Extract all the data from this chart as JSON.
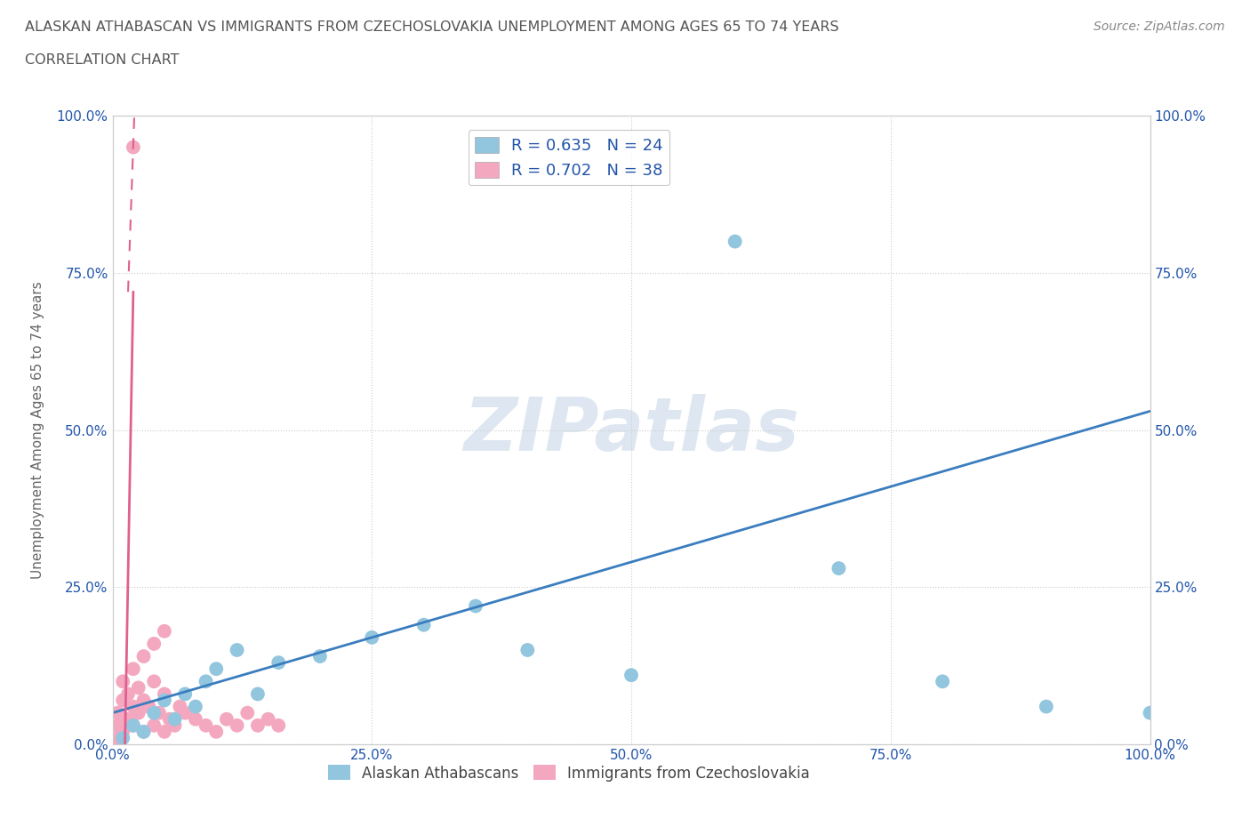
{
  "title_line1": "ALASKAN ATHABASCAN VS IMMIGRANTS FROM CZECHOSLOVAKIA UNEMPLOYMENT AMONG AGES 65 TO 74 YEARS",
  "title_line2": "CORRELATION CHART",
  "source_text": "Source: ZipAtlas.com",
  "ylabel": "Unemployment Among Ages 65 to 74 years",
  "xlim": [
    0,
    100
  ],
  "ylim": [
    0,
    100
  ],
  "xtick_vals": [
    0,
    25,
    50,
    75,
    100
  ],
  "ytick_vals": [
    0,
    25,
    50,
    75,
    100
  ],
  "legend_R1": "R = 0.635",
  "legend_N1": "N = 24",
  "legend_R2": "R = 0.702",
  "legend_N2": "N = 38",
  "color_blue": "#92c5de",
  "color_pink": "#f4a8c0",
  "color_trendline_blue": "#3a7dbf",
  "color_trendline_pink": "#e06090",
  "color_title": "#555555",
  "color_source": "#888888",
  "color_axis_label": "#2255aa",
  "watermark_text": "ZIPatlas",
  "blue_scatter_x": [
    1,
    2,
    3,
    4,
    5,
    6,
    7,
    8,
    9,
    10,
    12,
    14,
    16,
    20,
    25,
    30,
    35,
    40,
    50,
    60,
    70,
    80,
    90,
    100
  ],
  "blue_scatter_y": [
    1,
    3,
    2,
    5,
    7,
    4,
    8,
    6,
    10,
    12,
    15,
    8,
    13,
    14,
    17,
    19,
    22,
    15,
    11,
    80,
    28,
    10,
    6,
    5
  ],
  "pink_scatter_x": [
    0.5,
    0.5,
    0.5,
    1,
    1,
    1,
    1.5,
    1.5,
    2,
    2,
    2,
    2.5,
    2.5,
    3,
    3,
    3,
    3.5,
    4,
    4,
    4,
    4.5,
    5,
    5,
    5,
    5.5,
    6,
    6.5,
    7,
    8,
    9,
    10,
    11,
    12,
    13,
    14,
    15,
    16,
    2
  ],
  "pink_scatter_y": [
    1,
    3,
    5,
    2,
    7,
    10,
    4,
    8,
    3,
    6,
    12,
    5,
    9,
    2,
    7,
    14,
    6,
    3,
    10,
    16,
    5,
    2,
    8,
    18,
    4,
    3,
    6,
    5,
    4,
    3,
    2,
    4,
    3,
    5,
    3,
    4,
    3,
    95
  ],
  "blue_trend_x0": 0,
  "blue_trend_y0": 5,
  "blue_trend_x1": 100,
  "blue_trend_y1": 53,
  "pink_trend_solid_x0": 1.2,
  "pink_trend_solid_y0": 0,
  "pink_trend_solid_x1": 2.0,
  "pink_trend_solid_y1": 72,
  "pink_trend_dashed_x0": 1.5,
  "pink_trend_dashed_y0": 72,
  "pink_trend_dashed_x1": 2.1,
  "pink_trend_dashed_y1": 100
}
